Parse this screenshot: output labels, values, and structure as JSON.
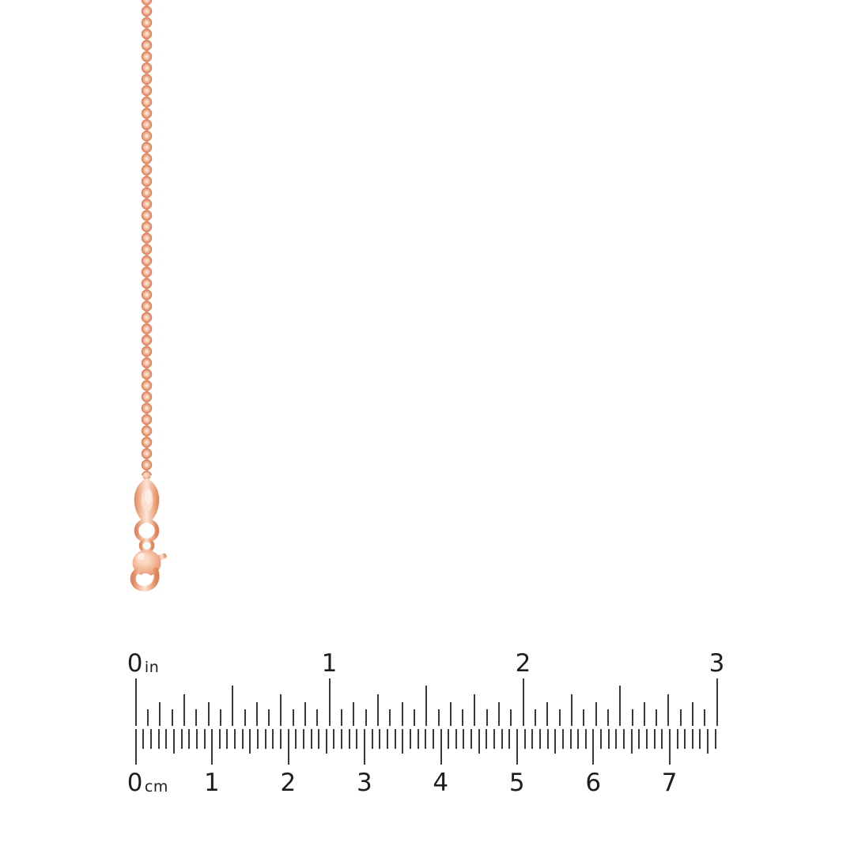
{
  "page": {
    "background_color": "#ffffff"
  },
  "product": {
    "kind": "rose-gold-bead-chain-with-lobster-clasp",
    "metal_colors": {
      "highlight": "#fdf0e7",
      "light": "#f9d7c2",
      "mid": "#f0ad8b",
      "deep": "#e18a63",
      "shadow": "#d1744c"
    }
  },
  "ruler": {
    "tick_color": "#383838",
    "label_color": "#1e1e1e",
    "inch_scale": {
      "unit_suffix": "in",
      "whole_labels": [
        "0",
        "1",
        "2",
        "3"
      ],
      "total_inches": 3,
      "ticks_per_inch": 16
    },
    "cm_scale": {
      "unit_suffix": "cm",
      "whole_labels": [
        "0",
        "1",
        "2",
        "3",
        "4",
        "5",
        "6",
        "7"
      ],
      "total_mm": 76,
      "ticks_per_cm": 10
    }
  }
}
